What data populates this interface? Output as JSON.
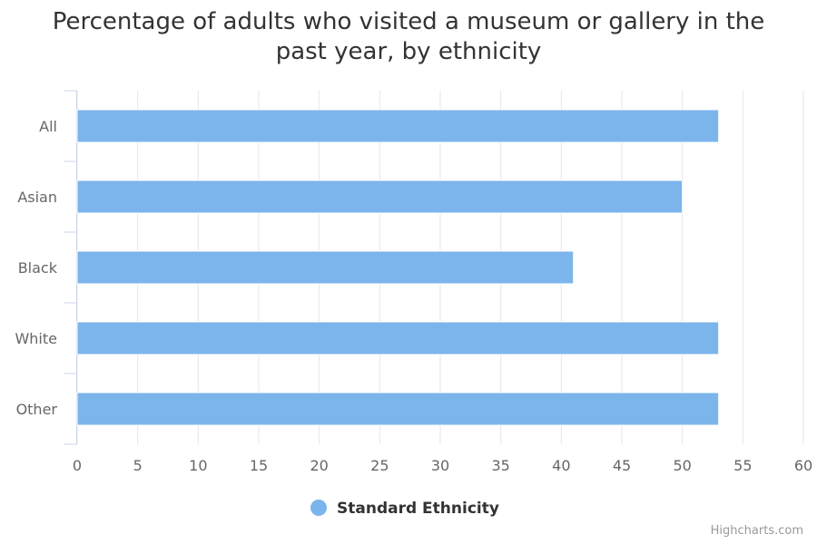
{
  "chart_data": {
    "type": "bar",
    "orientation": "horizontal",
    "title": "Percentage of adults who visited a museum or gallery in the past year, by ethnicity",
    "categories": [
      "All",
      "Asian",
      "Black",
      "White",
      "Other"
    ],
    "series": [
      {
        "name": "Standard Ethnicity",
        "color": "#7cb5ec",
        "values": [
          53,
          50,
          41,
          53,
          53
        ]
      }
    ],
    "xlim": [
      0,
      60
    ],
    "ticks": [
      0,
      5,
      10,
      15,
      20,
      25,
      30,
      35,
      40,
      45,
      50,
      55,
      60
    ],
    "grid": true,
    "legend_position": "bottom-center"
  },
  "credits": "Highcharts.com",
  "colors": {
    "bar": "#7cb5ec",
    "grid": "#e6e6e6",
    "axis_line": "#ccd6eb",
    "title": "#333333",
    "label": "#666666",
    "credits": "#999999"
  }
}
